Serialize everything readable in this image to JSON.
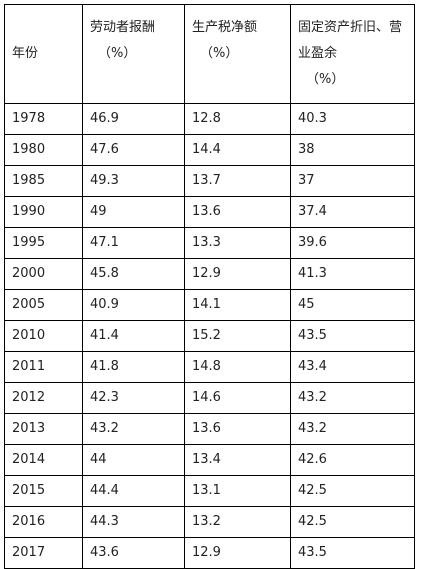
{
  "table": {
    "headers": [
      {
        "label": "年份",
        "unit": ""
      },
      {
        "label": "劳动者报酬",
        "unit": "（%）"
      },
      {
        "label": "生产税净额",
        "unit": "（%）"
      },
      {
        "label": "固定资产折旧、营业盈余",
        "unit": "（%）"
      }
    ],
    "rows": [
      [
        "1978",
        "46.9",
        "12.8",
        "40.3"
      ],
      [
        "1980",
        "47.6",
        "14.4",
        "38"
      ],
      [
        "1985",
        "49.3",
        "13.7",
        "37"
      ],
      [
        "1990",
        "49",
        "13.6",
        "37.4"
      ],
      [
        "1995",
        "47.1",
        "13.3",
        "39.6"
      ],
      [
        "2000",
        "45.8",
        "12.9",
        "41.3"
      ],
      [
        "2005",
        "40.9",
        "14.1",
        "45"
      ],
      [
        "2010",
        "41.4",
        "15.2",
        "43.5"
      ],
      [
        "2011",
        "41.8",
        "14.8",
        "43.4"
      ],
      [
        "2012",
        "42.3",
        "14.6",
        "43.2"
      ],
      [
        "2013",
        "43.2",
        "13.6",
        "43.2"
      ],
      [
        "2014",
        "44",
        "13.4",
        "42.6"
      ],
      [
        "2015",
        "44.4",
        "13.1",
        "42.5"
      ],
      [
        "2016",
        "44.3",
        "13.2",
        "42.5"
      ],
      [
        "2017",
        "43.6",
        "12.9",
        "43.5"
      ]
    ]
  }
}
